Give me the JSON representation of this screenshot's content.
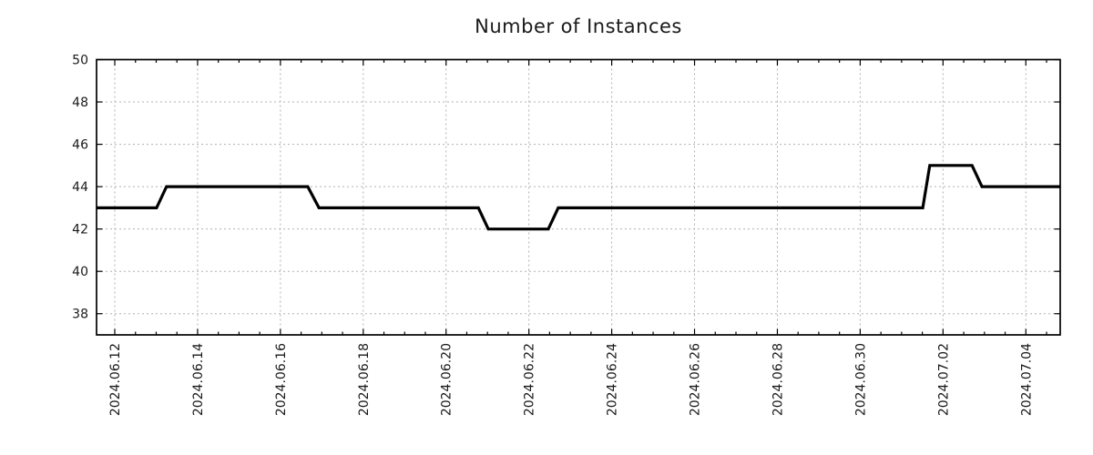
{
  "title": "Number of Instances",
  "chart_data": {
    "type": "line",
    "title": "Number of Instances",
    "style": "step-line",
    "legend": "none",
    "grid": {
      "major": true,
      "line_style": "dashed",
      "color": "#b0b0b0"
    },
    "x_axis": {
      "kind": "date",
      "tick_labels": [
        "2024.06.12",
        "2024.06.14",
        "2024.06.16",
        "2024.06.18",
        "2024.06.20",
        "2024.06.22",
        "2024.06.24",
        "2024.06.26",
        "2024.06.28",
        "2024.06.30",
        "2024.07.02",
        "2024.07.04"
      ],
      "tick_positions_days": [
        0,
        2,
        4,
        6,
        8,
        10,
        12,
        14,
        16,
        18,
        20,
        22
      ],
      "minor_tick_interval_days": 0.5,
      "xlim_days": [
        -0.44,
        22.83
      ],
      "label_rotation_deg": -90
    },
    "y_axis": {
      "tick_labels": [
        "38",
        "40",
        "42",
        "44",
        "46",
        "48",
        "50"
      ],
      "tick_values": [
        38,
        40,
        42,
        44,
        46,
        48,
        50
      ],
      "ylim": [
        37,
        50
      ]
    },
    "series": [
      {
        "name": "instances",
        "color": "#000000",
        "points_day_value": [
          [
            -0.44,
            43
          ],
          [
            1.01,
            43
          ],
          [
            1.25,
            44
          ],
          [
            4.66,
            44
          ],
          [
            4.93,
            43
          ],
          [
            8.78,
            43
          ],
          [
            9.02,
            42
          ],
          [
            10.47,
            42
          ],
          [
            10.71,
            43
          ],
          [
            19.51,
            43
          ],
          [
            19.68,
            45
          ],
          [
            20.7,
            45
          ],
          [
            20.94,
            44
          ],
          [
            22.83,
            44
          ]
        ]
      }
    ],
    "observed_levels": [
      43,
      44,
      43,
      42,
      43,
      45,
      44
    ]
  },
  "colors": {
    "background": "#ffffff",
    "line": "#000000",
    "grid": "#b0b0b0",
    "axis": "#000000",
    "text": "#1a1a1a"
  }
}
